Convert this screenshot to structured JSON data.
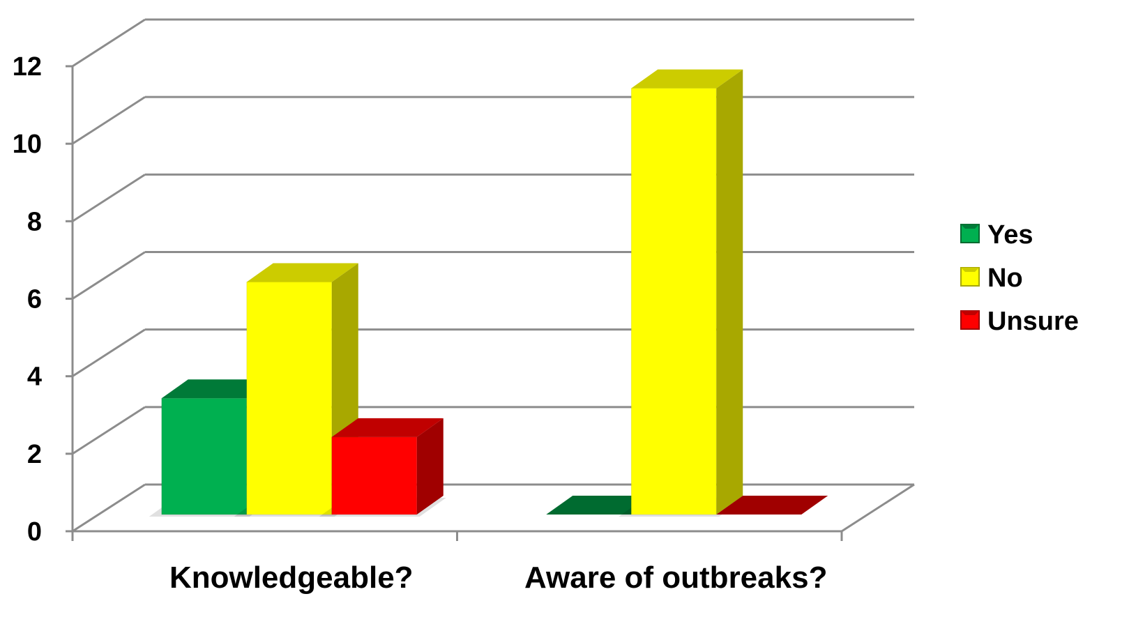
{
  "chart_data": {
    "type": "bar",
    "style": "3d-clustered-column",
    "categories": [
      "Knowledgeable?",
      "Aware of outbreaks?"
    ],
    "series": [
      {
        "name": "Yes",
        "values": [
          3,
          0
        ],
        "color": "#00b050",
        "top_color": "#007a38",
        "side_color": "#006b30"
      },
      {
        "name": "No",
        "values": [
          6,
          11
        ],
        "color": "#ffff00",
        "top_color": "#cccc00",
        "side_color": "#a8a800"
      },
      {
        "name": "Unsure",
        "values": [
          2,
          0
        ],
        "color": "#ff0000",
        "top_color": "#c00000",
        "side_color": "#a00000"
      }
    ],
    "ylim": [
      0,
      12
    ],
    "yticks": [
      "0",
      "2",
      "4",
      "6",
      "8",
      "10",
      "12"
    ],
    "title": "",
    "xlabel": "",
    "ylabel": "",
    "grid": true,
    "legend_position": "right"
  }
}
